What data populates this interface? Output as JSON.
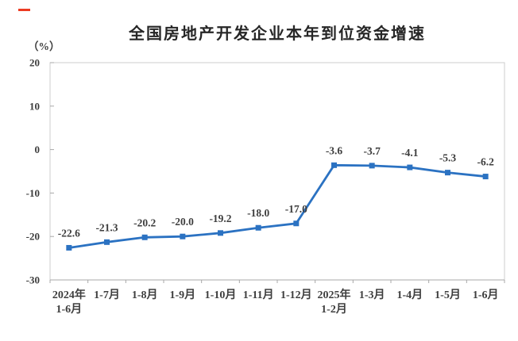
{
  "header": {
    "title": "全国房地产开发企业本年到位资金增速",
    "unit_label": "（%）"
  },
  "chart_data": {
    "type": "line",
    "title": "全国房地产开发企业本年到位资金增速",
    "unit": "（%）",
    "categories": [
      "2024年\n1-6月",
      "1-7月",
      "1-8月",
      "1-9月",
      "1-10月",
      "1-11月",
      "1-12月",
      "2025年\n1-2月",
      "1-3月",
      "1-4月",
      "1-5月",
      "1-6月"
    ],
    "values": [
      -22.6,
      -21.3,
      -20.2,
      -20.0,
      -19.2,
      -18.0,
      -17.0,
      -3.6,
      -3.7,
      -4.1,
      -5.3,
      -6.2
    ],
    "data_labels": [
      "-22.6",
      "-21.3",
      "-20.2",
      "-20.0",
      "-19.2",
      "-18.0",
      "-17.0",
      "-3.6",
      "-3.7",
      "-4.1",
      "-5.3",
      "-6.2"
    ],
    "y_ticks": [
      20,
      10,
      0,
      -10,
      -20,
      -30
    ],
    "ylim": [
      -30,
      20
    ],
    "xlabel": "",
    "ylabel": "（%）",
    "grid": false,
    "legend": "none",
    "data_label_decimals": 1,
    "line_color": "#2B72C2",
    "marker": "square",
    "text_color": "#3E3E3E",
    "axis_color": "#CCCCCC",
    "tick_color": "#A8A8A8"
  },
  "decorations": {
    "red_dash_color": "#EC3B22"
  }
}
